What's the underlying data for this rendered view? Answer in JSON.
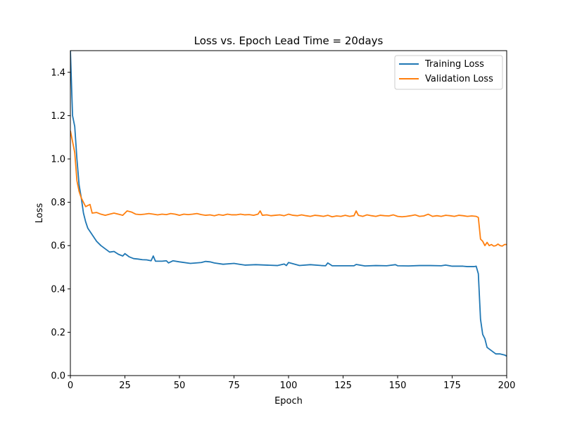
{
  "chart_data": {
    "type": "line",
    "title": "Loss vs. Epoch   Lead Time = 20days",
    "xlabel": "Epoch",
    "ylabel": "Loss",
    "xlim": [
      0,
      200
    ],
    "ylim": [
      0,
      1.5
    ],
    "xticks": [
      0,
      25,
      50,
      75,
      100,
      125,
      150,
      175,
      200
    ],
    "xtick_labels": [
      "0",
      "25",
      "50",
      "75",
      "100",
      "125",
      "150",
      "175",
      "200"
    ],
    "yticks": [
      0,
      0.2,
      0.4,
      0.6,
      0.8,
      1.0,
      1.2,
      1.4
    ],
    "ytick_labels": [
      "0.0",
      "0.2",
      "0.4",
      "0.6",
      "0.8",
      "1.0",
      "1.2",
      "1.4"
    ],
    "grid": false,
    "legend_position": "top-right",
    "series": [
      {
        "name": "Training Loss",
        "color": "#1f77b4",
        "x": [
          0,
          1,
          2,
          3,
          4,
          5,
          6,
          7,
          8,
          9,
          10,
          12,
          14,
          16,
          18,
          20,
          22,
          24,
          25,
          27,
          29,
          31,
          33,
          35,
          37,
          38,
          39,
          42,
          44,
          45,
          47,
          50,
          55,
          60,
          62,
          64,
          66,
          70,
          75,
          78,
          80,
          85,
          90,
          95,
          98,
          99,
          100,
          105,
          110,
          115,
          117,
          118,
          120,
          125,
          130,
          131,
          135,
          140,
          145,
          149,
          150,
          155,
          160,
          165,
          170,
          172,
          175,
          180,
          182,
          185,
          186,
          187,
          188,
          189,
          190,
          191,
          193,
          195,
          197,
          199,
          200
        ],
        "y": [
          1.5,
          1.2,
          1.15,
          1.0,
          0.88,
          0.82,
          0.75,
          0.71,
          0.68,
          0.665,
          0.65,
          0.62,
          0.6,
          0.585,
          0.57,
          0.573,
          0.56,
          0.552,
          0.563,
          0.548,
          0.54,
          0.538,
          0.535,
          0.534,
          0.53,
          0.552,
          0.528,
          0.528,
          0.53,
          0.52,
          0.53,
          0.525,
          0.518,
          0.522,
          0.527,
          0.525,
          0.52,
          0.514,
          0.518,
          0.513,
          0.51,
          0.512,
          0.51,
          0.508,
          0.515,
          0.508,
          0.522,
          0.508,
          0.512,
          0.508,
          0.507,
          0.52,
          0.507,
          0.507,
          0.507,
          0.513,
          0.506,
          0.508,
          0.507,
          0.512,
          0.507,
          0.506,
          0.508,
          0.508,
          0.507,
          0.51,
          0.505,
          0.505,
          0.503,
          0.503,
          0.505,
          0.47,
          0.26,
          0.19,
          0.17,
          0.13,
          0.115,
          0.1,
          0.1,
          0.095,
          0.09
        ]
      },
      {
        "name": "Validation Loss",
        "color": "#ff7f0e",
        "x": [
          0,
          1,
          2,
          3,
          4,
          5,
          6,
          7,
          8,
          9,
          10,
          12,
          14,
          16,
          18,
          20,
          22,
          24,
          26,
          28,
          30,
          32,
          34,
          36,
          38,
          40,
          42,
          44,
          46,
          48,
          50,
          52,
          54,
          56,
          58,
          60,
          62,
          64,
          66,
          68,
          70,
          72,
          74,
          76,
          78,
          80,
          82,
          84,
          86,
          87,
          88,
          90,
          92,
          94,
          96,
          98,
          100,
          102,
          104,
          106,
          108,
          110,
          112,
          114,
          116,
          118,
          120,
          122,
          124,
          126,
          128,
          130,
          131,
          132,
          134,
          136,
          138,
          140,
          142,
          144,
          146,
          148,
          150,
          152,
          154,
          156,
          158,
          160,
          162,
          164,
          166,
          168,
          170,
          172,
          174,
          176,
          178,
          180,
          182,
          184,
          186,
          187,
          188,
          189,
          190,
          191,
          192,
          193,
          194,
          195,
          196,
          197,
          198,
          199,
          200
        ],
        "y": [
          1.13,
          1.08,
          1.03,
          0.9,
          0.85,
          0.82,
          0.8,
          0.78,
          0.785,
          0.79,
          0.75,
          0.753,
          0.745,
          0.74,
          0.745,
          0.75,
          0.745,
          0.74,
          0.76,
          0.755,
          0.745,
          0.743,
          0.745,
          0.748,
          0.745,
          0.742,
          0.745,
          0.743,
          0.748,
          0.745,
          0.74,
          0.745,
          0.743,
          0.745,
          0.748,
          0.743,
          0.74,
          0.742,
          0.738,
          0.743,
          0.74,
          0.745,
          0.742,
          0.742,
          0.745,
          0.742,
          0.743,
          0.74,
          0.745,
          0.76,
          0.74,
          0.742,
          0.738,
          0.74,
          0.742,
          0.738,
          0.745,
          0.74,
          0.738,
          0.742,
          0.738,
          0.735,
          0.74,
          0.738,
          0.735,
          0.74,
          0.733,
          0.737,
          0.735,
          0.74,
          0.735,
          0.738,
          0.76,
          0.74,
          0.735,
          0.742,
          0.738,
          0.735,
          0.74,
          0.738,
          0.737,
          0.742,
          0.735,
          0.733,
          0.735,
          0.738,
          0.742,
          0.735,
          0.737,
          0.745,
          0.735,
          0.738,
          0.735,
          0.74,
          0.738,
          0.735,
          0.74,
          0.738,
          0.735,
          0.737,
          0.735,
          0.73,
          0.63,
          0.62,
          0.6,
          0.615,
          0.6,
          0.605,
          0.598,
          0.6,
          0.607,
          0.6,
          0.598,
          0.605,
          0.605
        ]
      }
    ]
  }
}
